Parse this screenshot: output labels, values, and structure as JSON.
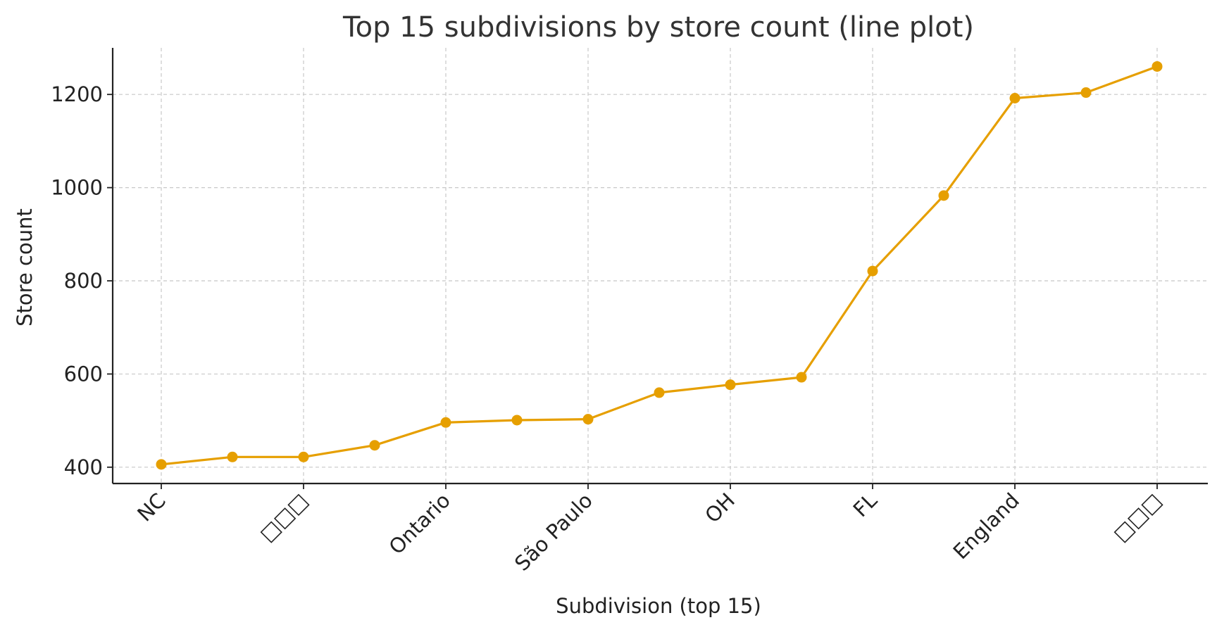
{
  "chart_data": {
    "type": "line",
    "title": "Top 15 subdivisions by store count (line plot)",
    "xlabel": "Subdivision (top 15)",
    "ylabel": "Store count",
    "categories": [
      "NC",
      "",
      "□□□",
      "",
      "Ontario",
      "",
      "São Paulo",
      "",
      "OH",
      "",
      "FL",
      "",
      "England",
      "",
      "□□□"
    ],
    "values": [
      406,
      422,
      422,
      447,
      496,
      501,
      503,
      560,
      577,
      593,
      821,
      983,
      1192,
      1204,
      1260
    ],
    "yticks": [
      400,
      600,
      800,
      1000,
      1200
    ],
    "ylim": [
      365,
      1300
    ],
    "grid": true,
    "line_color": "#E69F00"
  }
}
